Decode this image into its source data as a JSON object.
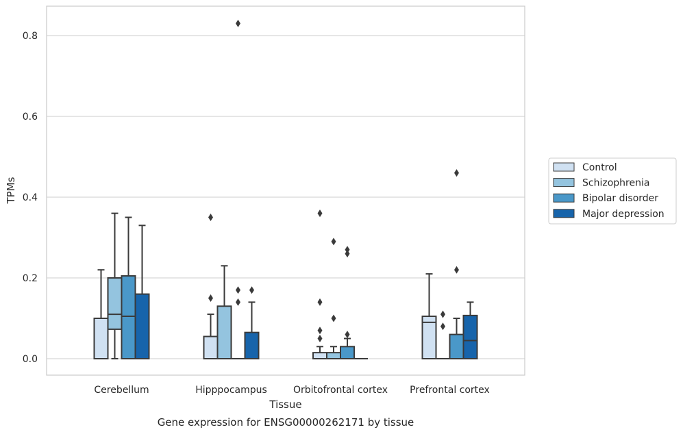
{
  "caption": "Gene expression for ENSG00000262171 by tissue",
  "chart_data": {
    "type": "boxplot",
    "xlabel": "Tissue",
    "ylabel": "TPMs",
    "ylim": [
      -0.04,
      0.87
    ],
    "yticks": [
      0.0,
      0.2,
      0.4,
      0.6,
      0.8
    ],
    "ytick_labels": [
      "0.0",
      "0.2",
      "0.4",
      "0.6",
      "0.8"
    ],
    "grid": true,
    "legend_position": "right",
    "categories": [
      "Cerebellum",
      "Hipppocampus",
      "Orbitofrontal cortex",
      "Prefrontal cortex"
    ],
    "series": [
      {
        "name": "Control",
        "color": "#d0e1f2",
        "boxes": [
          {
            "q1": 0.0,
            "median": 0.0,
            "q3": 0.1,
            "whisker_low": 0.0,
            "whisker_high": 0.22,
            "outliers": []
          },
          {
            "q1": 0.0,
            "median": 0.0,
            "q3": 0.055,
            "whisker_low": 0.0,
            "whisker_high": 0.11,
            "outliers": [
              0.15,
              0.35
            ]
          },
          {
            "q1": 0.0,
            "median": 0.0,
            "q3": 0.015,
            "whisker_low": 0.0,
            "whisker_high": 0.03,
            "outliers": [
              0.05,
              0.07,
              0.14,
              0.36
            ]
          },
          {
            "q1": 0.0,
            "median": 0.09,
            "q3": 0.105,
            "whisker_low": 0.0,
            "whisker_high": 0.21,
            "outliers": []
          }
        ]
      },
      {
        "name": "Schizophrenia",
        "color": "#94c4df",
        "boxes": [
          {
            "q1": 0.073,
            "median": 0.11,
            "q3": 0.2,
            "whisker_low": 0.0,
            "whisker_high": 0.36,
            "outliers": []
          },
          {
            "q1": 0.0,
            "median": 0.0,
            "q3": 0.13,
            "whisker_low": 0.0,
            "whisker_high": 0.23,
            "outliers": []
          },
          {
            "q1": 0.0,
            "median": 0.0,
            "q3": 0.015,
            "whisker_low": 0.0,
            "whisker_high": 0.03,
            "outliers": [
              0.1,
              0.29
            ]
          },
          {
            "q1": 0.0,
            "median": 0.0,
            "q3": 0.0,
            "whisker_low": 0.0,
            "whisker_high": 0.0,
            "outliers": [
              0.08,
              0.11
            ]
          }
        ]
      },
      {
        "name": "Bipolar disorder",
        "color": "#4a98c9",
        "boxes": [
          {
            "q1": 0.0,
            "median": 0.105,
            "q3": 0.205,
            "whisker_low": 0.0,
            "whisker_high": 0.35,
            "outliers": []
          },
          {
            "q1": 0.0,
            "median": 0.0,
            "q3": 0.0,
            "whisker_low": 0.0,
            "whisker_high": 0.0,
            "outliers": [
              0.14,
              0.17,
              0.83
            ]
          },
          {
            "q1": 0.0,
            "median": 0.0,
            "q3": 0.03,
            "whisker_low": 0.0,
            "whisker_high": 0.05,
            "outliers": [
              0.06,
              0.26,
              0.27
            ]
          },
          {
            "q1": 0.0,
            "median": 0.0,
            "q3": 0.06,
            "whisker_low": 0.0,
            "whisker_high": 0.1,
            "outliers": [
              0.22,
              0.46
            ]
          }
        ]
      },
      {
        "name": "Major depression",
        "color": "#1764ab",
        "boxes": [
          {
            "q1": 0.0,
            "median": 0.0,
            "q3": 0.16,
            "whisker_low": 0.0,
            "whisker_high": 0.33,
            "outliers": []
          },
          {
            "q1": 0.0,
            "median": 0.0,
            "q3": 0.065,
            "whisker_low": 0.0,
            "whisker_high": 0.14,
            "outliers": [
              0.17
            ]
          },
          {
            "q1": 0.0,
            "median": 0.0,
            "q3": 0.0,
            "whisker_low": 0.0,
            "whisker_high": 0.0,
            "outliers": []
          },
          {
            "q1": 0.0,
            "median": 0.045,
            "q3": 0.107,
            "whisker_low": 0.0,
            "whisker_high": 0.14,
            "outliers": []
          }
        ]
      }
    ]
  }
}
